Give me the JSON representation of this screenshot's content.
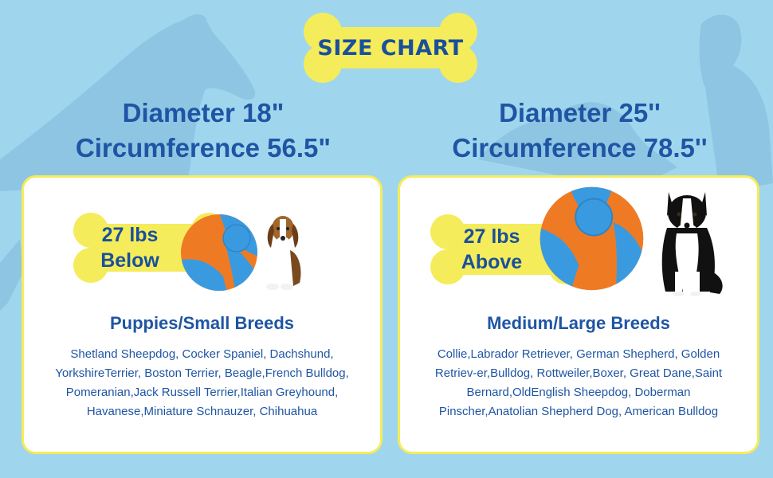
{
  "header": {
    "title": "SIZE CHART"
  },
  "left": {
    "diameter": "Diameter 18\"",
    "circumference": "Circumference 56.5\"",
    "weight_line1": "27 lbs",
    "weight_line2": "Below",
    "breed_title": "Puppies/Small Breeds",
    "breeds": "Shetland Sheepdog, Cocker Spaniel, Dachshund, YorkshireTerrier, Boston Terrier, Beagle,French Bulldog, Pomeranian,Jack Russell Terrier,Italian Greyhound, Havanese,Miniature Schnauzer, Chihuahua",
    "dog_icon": "beagle-dog"
  },
  "right": {
    "diameter": "Diameter 25''",
    "circumference": "Circumference 78.5''",
    "weight_line1": "27 lbs",
    "weight_line2": "Above",
    "breed_title": "Medium/Large Breeds",
    "breeds": "Collie,Labrador Retriever, German Shepherd, Golden Retriev-er,Bulldog, Rottweiler,Boxer, Great Dane,Saint Bernard,OldEnglish Sheepdog, Doberman Pinscher,Anatolian Shepherd Dog, American Bulldog",
    "dog_icon": "border-collie-dog"
  },
  "colors": {
    "background": "#9fd6ee",
    "bone_yellow": "#f4ec5a",
    "text_blue": "#1f55a3",
    "ball_orange": "#ef7a24",
    "ball_blue": "#3a9ae0"
  }
}
